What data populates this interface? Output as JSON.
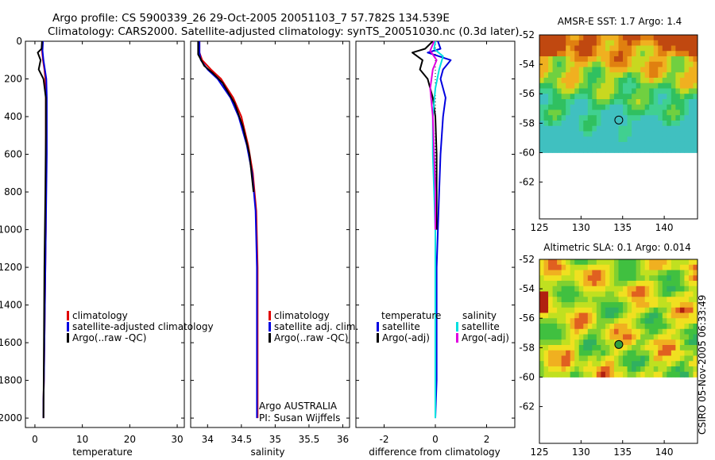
{
  "title_line1": "Argo profile: CS 5900339_26 29-Oct-2005 20051103_7 57.782S 134.539E",
  "title_line2": "Climatology: CARS2000. Satellite-adjusted climatology: synTS_20051030.nc (0.3d later)",
  "credit": "CSIRO 05-Nov-2005 06:33:49",
  "colors": {
    "climatology": "#e00000",
    "satellite": "#0000e0",
    "argo": "#000000",
    "sat_diff_sal": "#00e0e0",
    "argo_diff_sal": "#e000e0"
  },
  "chart_data": [
    {
      "type": "line",
      "name": "temperature-profile",
      "xlabel": "temperature",
      "ylabel": "",
      "xlim": [
        -2,
        31.5
      ],
      "ylim": [
        2050,
        0
      ],
      "xticks": [
        0,
        10,
        20,
        30
      ],
      "yticks": [
        0,
        200,
        400,
        600,
        800,
        1000,
        1200,
        1400,
        1600,
        1800,
        2000
      ],
      "legend": [
        "climatology",
        "satellite-adjusted climatology",
        "Argo(..raw -QC)"
      ],
      "series": [
        {
          "name": "climatology",
          "color": "climatology",
          "x": [
            1.6,
            1.5,
            1.7,
            2.0,
            2.2,
            2.3,
            2.3,
            2.3,
            2.3,
            2.3,
            2.2,
            2.1,
            2.0,
            1.9,
            1.8,
            1.8
          ],
          "y": [
            0,
            50,
            100,
            150,
            200,
            300,
            400,
            600,
            800,
            1000,
            1200,
            1400,
            1600,
            1800,
            1900,
            2000
          ]
        },
        {
          "name": "satellite",
          "color": "satellite",
          "x": [
            1.7,
            1.6,
            1.8,
            2.1,
            2.4,
            2.5,
            2.5,
            2.5,
            2.4,
            2.3,
            2.2,
            2.1,
            2.0,
            1.9,
            1.8,
            1.8
          ],
          "y": [
            0,
            50,
            100,
            150,
            200,
            300,
            400,
            600,
            800,
            1000,
            1200,
            1400,
            1600,
            1800,
            1900,
            2000
          ]
        },
        {
          "name": "argo",
          "color": "argo",
          "x": [
            1.5,
            1.4,
            0.6,
            1.2,
            0.8,
            1.8,
            2.3,
            2.3,
            2.2,
            2.0,
            1.9,
            1.8
          ],
          "y": [
            0,
            40,
            60,
            100,
            150,
            200,
            300,
            500,
            800,
            1200,
            1600,
            2000
          ]
        }
      ]
    },
    {
      "type": "line",
      "name": "salinity-profile",
      "xlabel": "salinity",
      "ylabel": "",
      "xlim": [
        33.75,
        36.1
      ],
      "ylim": [
        2050,
        0
      ],
      "xticks": [
        34,
        34.5,
        35,
        35.5,
        36
      ],
      "yticks": [
        0,
        200,
        400,
        600,
        800,
        1000,
        1200,
        1400,
        1600,
        1800,
        2000
      ],
      "legend": [
        "climatology",
        "satellite adj. clim.",
        "Argo(..raw -QC)"
      ],
      "annotations": [
        "Argo AUSTRALIA",
        "PI: Susan Wijffels"
      ],
      "series": [
        {
          "name": "climatology",
          "color": "climatology",
          "x": [
            33.88,
            33.88,
            33.92,
            34.05,
            34.2,
            34.38,
            34.5,
            34.6,
            34.67,
            34.72,
            34.74,
            34.74,
            34.74,
            34.74
          ],
          "y": [
            0,
            60,
            100,
            150,
            200,
            300,
            400,
            550,
            700,
            900,
            1200,
            1500,
            1800,
            2000
          ]
        },
        {
          "name": "satellite",
          "color": "satellite",
          "x": [
            33.88,
            33.88,
            33.9,
            34.0,
            34.15,
            34.34,
            34.46,
            34.58,
            34.66,
            34.71,
            34.73,
            34.73,
            34.73,
            34.73
          ],
          "y": [
            0,
            60,
            100,
            150,
            200,
            300,
            400,
            550,
            700,
            900,
            1200,
            1500,
            1800,
            2000
          ]
        },
        {
          "name": "argo",
          "color": "argo",
          "x": [
            33.86,
            33.86,
            33.95,
            34.08,
            34.22,
            34.4,
            34.52,
            34.62,
            34.68
          ],
          "y": [
            0,
            70,
            130,
            170,
            220,
            330,
            450,
            600,
            800
          ]
        }
      ]
    },
    {
      "type": "line",
      "name": "difference-from-climatology",
      "xlabel": "difference from climatology",
      "ylabel": "",
      "xlim": [
        -3.1,
        3.1
      ],
      "ylim": [
        2050,
        0
      ],
      "xticks": [
        -2,
        0,
        2
      ],
      "yticks": [
        0,
        200,
        400,
        600,
        800,
        1000,
        1200,
        1400,
        1600,
        1800,
        2000
      ],
      "legend_temperature_title": "temperature",
      "legend_salinity_title": "salinity",
      "legend_temperature": [
        "satellite",
        "Argo(-adj)"
      ],
      "legend_salinity": [
        "satellite",
        "Argo(-adj)"
      ],
      "series": [
        {
          "name": "temperature-satellite",
          "color": "satellite",
          "x": [
            0.1,
            0.2,
            -0.3,
            0.6,
            0.3,
            0.2,
            0.4,
            0.3,
            0.2,
            0.15,
            0.1,
            0.05,
            0.05,
            0.05,
            0.0
          ],
          "y": [
            0,
            40,
            60,
            100,
            150,
            200,
            300,
            400,
            600,
            800,
            1000,
            1200,
            1500,
            1800,
            2000
          ]
        },
        {
          "name": "temperature-argo",
          "color": "argo",
          "x": [
            -0.1,
            -0.4,
            -0.9,
            -0.5,
            -0.6,
            -0.3,
            -0.1,
            0.0,
            0.05,
            0.05,
            0.05
          ],
          "y": [
            0,
            40,
            60,
            100,
            150,
            200,
            300,
            400,
            600,
            800,
            1000
          ]
        },
        {
          "name": "salinity-satellite",
          "color": "sat_diff_sal",
          "x": [
            0.0,
            -0.05,
            0.3,
            0.15,
            0.0,
            -0.1,
            -0.1,
            -0.05,
            0.0,
            0.0,
            0.0
          ],
          "y": [
            0,
            40,
            80,
            150,
            250,
            400,
            600,
            800,
            1000,
            1500,
            2000
          ]
        },
        {
          "name": "salinity-argo",
          "color": "argo_diff_sal",
          "x": [
            -0.05,
            -0.2,
            0.05,
            -0.1,
            -0.2,
            -0.1,
            -0.05,
            0.0,
            0.0
          ],
          "y": [
            0,
            50,
            100,
            150,
            250,
            400,
            600,
            800,
            1000
          ]
        }
      ]
    },
    {
      "type": "heatmap",
      "name": "amsre-sst-map",
      "title": "AMSR-E SST: 1.7 Argo: 1.4",
      "xlim": [
        125,
        144
      ],
      "ylim": [
        -64.5,
        -52
      ],
      "data_ylim": [
        -60,
        -52
      ],
      "xticks": [
        125,
        130,
        135,
        140
      ],
      "yticks": [
        -52,
        -54,
        -56,
        -58,
        -60,
        -62
      ],
      "marker": {
        "lon": 134.539,
        "lat": -57.782
      }
    },
    {
      "type": "heatmap",
      "name": "altimetric-sla-map",
      "title": "Altimetric SLA: 0.1 Argo: 0.014",
      "xlim": [
        125,
        144
      ],
      "ylim": [
        -64.5,
        -52
      ],
      "data_ylim": [
        -60,
        -52
      ],
      "xticks": [
        125,
        130,
        135,
        140
      ],
      "yticks": [
        -52,
        -54,
        -56,
        -58,
        -60,
        -62
      ],
      "marker": {
        "lon": 134.539,
        "lat": -57.782
      }
    }
  ]
}
